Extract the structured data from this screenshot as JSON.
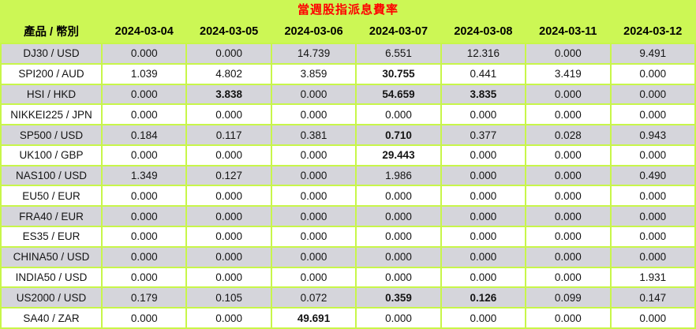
{
  "title": "當週股指派息費率",
  "colors": {
    "page_background": "#ccf755",
    "grid_line": "#c8f64a",
    "row_gray": "#d5d5db",
    "row_white": "#ffffff",
    "title_red": "#ff0000",
    "text_black": "#141414"
  },
  "chart_data": {
    "type": "table",
    "title": "當週股指派息費率",
    "columns": [
      "產品 / 幣別",
      "2024-03-04",
      "2024-03-05",
      "2024-03-06",
      "2024-03-07",
      "2024-03-08",
      "2024-03-11",
      "2024-03-12"
    ],
    "rows": [
      {
        "product": "DJ30 / USD",
        "values": [
          "0.000",
          "0.000",
          "14.739",
          "6.551",
          "12.316",
          "0.000",
          "9.491"
        ],
        "bold_cols": []
      },
      {
        "product": "SPI200 / AUD",
        "values": [
          "1.039",
          "4.802",
          "3.859",
          "30.755",
          "0.441",
          "3.419",
          "0.000"
        ],
        "bold_cols": [
          3
        ]
      },
      {
        "product": "HSI / HKD",
        "values": [
          "0.000",
          "3.838",
          "0.000",
          "54.659",
          "3.835",
          "0.000",
          "0.000"
        ],
        "bold_cols": [
          1,
          3,
          4
        ]
      },
      {
        "product": "NIKKEI225 / JPN",
        "values": [
          "0.000",
          "0.000",
          "0.000",
          "0.000",
          "0.000",
          "0.000",
          "0.000"
        ],
        "bold_cols": []
      },
      {
        "product": "SP500 / USD",
        "values": [
          "0.184",
          "0.117",
          "0.381",
          "0.710",
          "0.377",
          "0.028",
          "0.943"
        ],
        "bold_cols": [
          3
        ]
      },
      {
        "product": "UK100 / GBP",
        "values": [
          "0.000",
          "0.000",
          "0.000",
          "29.443",
          "0.000",
          "0.000",
          "0.000"
        ],
        "bold_cols": [
          3
        ]
      },
      {
        "product": "NAS100 / USD",
        "values": [
          "1.349",
          "0.127",
          "0.000",
          "1.986",
          "0.000",
          "0.000",
          "0.490"
        ],
        "bold_cols": []
      },
      {
        "product": "EU50 / EUR",
        "values": [
          "0.000",
          "0.000",
          "0.000",
          "0.000",
          "0.000",
          "0.000",
          "0.000"
        ],
        "bold_cols": []
      },
      {
        "product": "FRA40 / EUR",
        "values": [
          "0.000",
          "0.000",
          "0.000",
          "0.000",
          "0.000",
          "0.000",
          "0.000"
        ],
        "bold_cols": []
      },
      {
        "product": "ES35 / EUR",
        "values": [
          "0.000",
          "0.000",
          "0.000",
          "0.000",
          "0.000",
          "0.000",
          "0.000"
        ],
        "bold_cols": []
      },
      {
        "product": "CHINA50 / USD",
        "values": [
          "0.000",
          "0.000",
          "0.000",
          "0.000",
          "0.000",
          "0.000",
          "0.000"
        ],
        "bold_cols": []
      },
      {
        "product": "INDIA50 / USD",
        "values": [
          "0.000",
          "0.000",
          "0.000",
          "0.000",
          "0.000",
          "0.000",
          "1.931"
        ],
        "bold_cols": []
      },
      {
        "product": "US2000 / USD",
        "values": [
          "0.179",
          "0.105",
          "0.072",
          "0.359",
          "0.126",
          "0.099",
          "0.147"
        ],
        "bold_cols": [
          3,
          4
        ]
      },
      {
        "product": "SA40 / ZAR",
        "values": [
          "0.000",
          "0.000",
          "49.691",
          "0.000",
          "0.000",
          "0.000",
          "0.000"
        ],
        "bold_cols": [
          2
        ]
      }
    ]
  }
}
